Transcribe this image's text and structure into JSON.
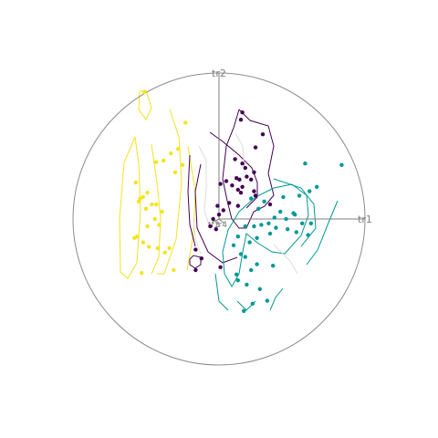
{
  "chart_data": {
    "type": "scatter",
    "title": "",
    "axes": [
      {
        "name": "tr1",
        "label": "tr1",
        "direction": "right"
      },
      {
        "name": "tr2",
        "label": "tr2",
        "direction": "up"
      }
    ],
    "origin_labels": [
      "tr3",
      "tr4"
    ],
    "boundary": "circle",
    "colors": {
      "purple": "#440154",
      "teal": "#009896",
      "yellow": "#f5e31e",
      "axis": "#7f7f7f",
      "circle": "#8c8c8c"
    },
    "series": [
      {
        "color": "#f5e31e",
        "x": [
          -0.51,
          -0.23,
          -0.43,
          -0.38,
          -0.33,
          -0.28,
          -0.25,
          -0.3,
          -0.57,
          -0.49,
          -0.52,
          -0.54,
          -0.55,
          -0.5,
          -0.46,
          -0.43,
          -0.39,
          -0.44,
          -0.41,
          -0.49,
          -0.56,
          -0.58,
          -0.52,
          -0.48,
          -0.42,
          -0.37,
          -0.34,
          -0.31,
          -0.53
        ],
        "y": [
          0.87,
          0.66,
          0.39,
          0.4,
          0.45,
          0.48,
          0.37,
          0.32,
          0.25,
          0.18,
          0.15,
          0.14,
          0.12,
          0.07,
          0.1,
          0.1,
          0.05,
          0.0,
          -0.04,
          -0.05,
          -0.12,
          -0.13,
          -0.16,
          -0.19,
          -0.2,
          -0.23,
          -0.2,
          -0.35,
          -0.37
        ]
      },
      {
        "color": "#440154",
        "x": [
          0.16,
          0.15,
          0.3,
          0.25,
          0.11,
          0.16,
          0.18,
          0.24,
          0.19,
          0.12,
          0.22,
          0.14,
          0.05,
          0.01,
          0.16,
          0.09,
          0.13,
          0.15,
          0.25,
          0.35,
          0.07,
          -0.01,
          0.24,
          0.13,
          0.03,
          0.0,
          -0.04,
          -0.06,
          -0.02,
          -0.16,
          -0.12,
          0.01,
          -0.16
        ],
        "y": [
          0.73,
          0.68,
          0.58,
          0.49,
          0.41,
          0.38,
          0.35,
          0.32,
          0.29,
          0.28,
          0.27,
          0.27,
          0.26,
          0.24,
          0.22,
          0.23,
          0.2,
          0.18,
          0.16,
          0.1,
          0.11,
          0.09,
          0.19,
          0.09,
          0.06,
          0.03,
          -0.0,
          -0.05,
          -0.07,
          -0.21,
          -0.27,
          -0.33,
          -0.35
        ]
      },
      {
        "color": "#009896",
        "x": [
          0.59,
          0.84,
          0.67,
          0.62,
          0.55,
          0.44,
          0.31,
          0.22,
          0.27,
          0.38,
          0.51,
          0.46,
          0.34,
          0.29,
          0.18,
          0.24,
          0.42,
          0.52,
          0.57,
          0.63,
          0.39,
          0.47,
          0.53,
          0.61,
          0.35,
          0.26,
          0.13,
          0.21,
          0.1,
          0.15,
          0.18,
          0.26,
          0.37,
          0.22,
          0.12,
          0.13,
          0.19,
          0.28,
          0.33,
          0.23,
          0.17
        ],
        "y": [
          0.38,
          0.37,
          0.22,
          0.19,
          0.16,
          0.15,
          0.12,
          0.14,
          0.07,
          0.01,
          0.04,
          0.0,
          -0.03,
          -0.04,
          -0.05,
          -0.05,
          0.05,
          0.03,
          -0.03,
          -0.03,
          -0.06,
          -0.07,
          -0.09,
          -0.11,
          -0.1,
          -0.13,
          -0.12,
          -0.16,
          -0.18,
          -0.24,
          -0.26,
          -0.31,
          -0.32,
          -0.35,
          -0.38,
          -0.42,
          -0.45,
          -0.48,
          -0.56,
          -0.58,
          -0.63
        ]
      }
    ]
  }
}
